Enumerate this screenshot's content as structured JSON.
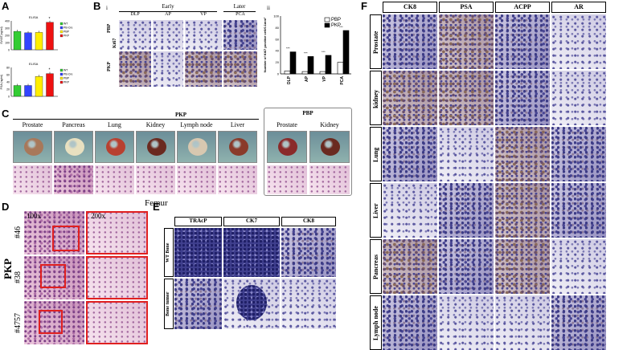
{
  "panels": {
    "A": "A",
    "B": "B",
    "C": "C",
    "D": "D",
    "E": "E",
    "F": "F"
  },
  "panel_A": {
    "chart_data": [
      {
        "type": "bar",
        "title": "ELISA",
        "ylabel": "SV40T(ng/ml)",
        "yticks": [
          "0",
          "100",
          "200",
          "300",
          "400"
        ],
        "ylim": [
          0,
          400
        ],
        "categories": [
          "WT",
          "PB-Cre",
          "PBP",
          "PKP"
        ],
        "values": [
          255,
          235,
          240,
          380
        ],
        "colors": [
          "#33cc33",
          "#3344ff",
          "#ffee00",
          "#ee1111"
        ],
        "star": "*"
      },
      {
        "type": "bar",
        "title": "ELISA",
        "ylabel": "PSA (ng/ml)",
        "yticks": [
          "0",
          "20",
          "40",
          "60",
          "80"
        ],
        "ylim": [
          0,
          80
        ],
        "categories": [
          "WT",
          "PB-Cre",
          "PBP",
          "PKP"
        ],
        "values": [
          30,
          30,
          55,
          63
        ],
        "colors": [
          "#33cc33",
          "#3344ff",
          "#ffee00",
          "#ee1111"
        ],
        "star": "*"
      }
    ],
    "legend": [
      "WT",
      "PB-Cre",
      "PBP",
      "PKP"
    ]
  },
  "panel_B": {
    "sub_i": "i",
    "sub_ii": "ii",
    "early": "Early",
    "later": "Later",
    "cols": [
      "DLP",
      "AP",
      "VP",
      "PCA"
    ],
    "row_pbp": "PBP",
    "row_pkp": "PKP",
    "ki67": "Ki67",
    "chart_data": {
      "type": "bar",
      "ylabel": "Number of Ki67 positive cell/0.1mm²",
      "categories": [
        "DLP",
        "AP",
        "VP",
        "PCA"
      ],
      "series": [
        {
          "name": "PBP",
          "values": [
            5,
            4,
            4,
            20
          ],
          "color": "#ffffff"
        },
        {
          "name": "PKP",
          "values": [
            38,
            30,
            32,
            75
          ],
          "color": "#000000"
        }
      ],
      "ylim": [
        0,
        100
      ],
      "yticks": [
        "0",
        "20",
        "40",
        "60",
        "80",
        "100"
      ],
      "star": "***"
    }
  },
  "panel_C": {
    "pkp": "PKP",
    "pbp": "PBP",
    "pkp_organs": [
      "Prostate",
      "Pancreas",
      "Lung",
      "Kidney",
      "Lymph node",
      "Liver"
    ],
    "pbp_organs": [
      "Prostate",
      "Kidney"
    ],
    "cm": "(cm)"
  },
  "panel_D": {
    "femur": "Femur",
    "mag1": "100x",
    "mag2": "200x",
    "side": "PKP",
    "rows": [
      "#46",
      "#38",
      "#4757"
    ]
  },
  "panel_E": {
    "cols": [
      "TRAcP",
      "CK7",
      "CK8"
    ],
    "rows": [
      "WT Bone",
      "Bone tumor"
    ]
  },
  "panel_F": {
    "cols": [
      "CK8",
      "PSA",
      "ACPP",
      "AR"
    ],
    "rows": [
      "Prostate",
      "kidney",
      "Lung",
      "Liver",
      "Pancreas",
      "Lymph node"
    ]
  }
}
